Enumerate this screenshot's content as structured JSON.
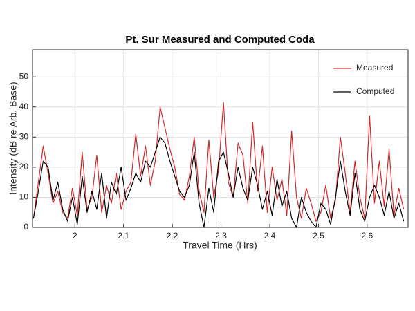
{
  "chart_data": {
    "type": "line",
    "title": "Pt. Sur Measured and Computed Coda",
    "x_label": "Travel Time (Hrs)",
    "y_label": "Intensity (dB re Arb. Base)",
    "x": [
      1.915,
      1.925,
      1.935,
      1.945,
      1.955,
      1.965,
      1.975,
      1.985,
      1.995,
      2.005,
      2.015,
      2.025,
      2.035,
      2.045,
      2.055,
      2.065,
      2.075,
      2.085,
      2.095,
      2.105,
      2.115,
      2.125,
      2.135,
      2.145,
      2.155,
      2.165,
      2.175,
      2.185,
      2.195,
      2.205,
      2.215,
      2.225,
      2.235,
      2.245,
      2.255,
      2.265,
      2.275,
      2.285,
      2.295,
      2.305,
      2.315,
      2.325,
      2.335,
      2.345,
      2.355,
      2.365,
      2.375,
      2.385,
      2.395,
      2.405,
      2.415,
      2.425,
      2.435,
      2.445,
      2.455,
      2.465,
      2.475,
      2.485,
      2.495,
      2.505,
      2.515,
      2.525,
      2.535,
      2.545,
      2.555,
      2.565,
      2.575,
      2.585,
      2.595,
      2.605,
      2.615,
      2.625,
      2.635,
      2.645,
      2.655,
      2.665,
      2.675
    ],
    "series": [
      {
        "name": "Measured",
        "color": "#d62728",
        "values": [
          3,
          15,
          27,
          18,
          8,
          12,
          5,
          3,
          13,
          4,
          25,
          6,
          10,
          24,
          5,
          14,
          8,
          18,
          6,
          12,
          15,
          31,
          17,
          27,
          14,
          22,
          40,
          33,
          26,
          20,
          11,
          9,
          17,
          30,
          12,
          5,
          29,
          10,
          19,
          41.5,
          15,
          10,
          28,
          24,
          8,
          35,
          12,
          27,
          5,
          20,
          9,
          16,
          4,
          32,
          10,
          3,
          13,
          8,
          2,
          5,
          14,
          3,
          9,
          30,
          18,
          5,
          22,
          10,
          3,
          37,
          8,
          22,
          7,
          26,
          4,
          13,
          6
        ]
      },
      {
        "name": "Computed",
        "color": "#000000",
        "values": [
          3,
          12,
          22,
          20,
          9,
          15,
          6,
          2,
          10,
          1,
          17,
          5,
          12,
          6,
          18,
          3,
          15,
          11,
          20,
          9,
          13,
          18,
          15,
          22,
          20,
          25,
          30,
          28,
          22,
          17,
          12,
          10,
          14,
          25,
          8,
          0,
          13,
          5,
          22,
          25,
          18,
          10,
          20,
          13,
          9,
          20,
          14,
          6,
          12,
          4,
          16,
          7,
          12,
          3,
          0,
          10,
          5,
          2,
          0,
          8,
          6,
          1,
          10,
          22,
          12,
          4,
          18,
          6,
          2,
          10,
          14,
          10,
          4,
          12,
          3,
          8,
          2
        ]
      }
    ],
    "xlim": [
      1.913,
      2.684
    ],
    "xticks": [
      2,
      2.1,
      2.2,
      2.3,
      2.4,
      2.5,
      2.6
    ],
    "ylim": [
      0,
      59
    ],
    "yticks": [
      0,
      10,
      20,
      30,
      40,
      50
    ],
    "grid": true,
    "legend": "upper right"
  }
}
